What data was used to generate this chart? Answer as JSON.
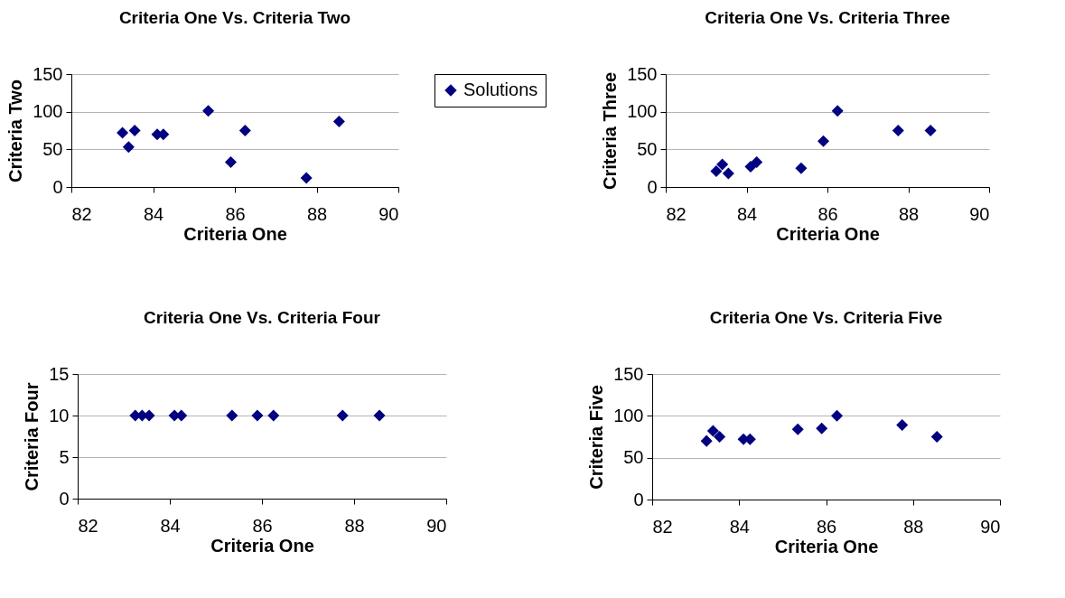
{
  "chart_data": [
    {
      "type": "scatter",
      "title": "Criteria One Vs. Criteria Two",
      "xlabel": "Criteria One",
      "ylabel": "Criteria Two",
      "x": [
        83.25,
        83.4,
        83.55,
        84.1,
        84.25,
        85.35,
        85.9,
        86.25,
        87.75,
        88.55
      ],
      "series": [
        {
          "name": "Solutions",
          "color": "#000080",
          "values": [
            72,
            53,
            75,
            70,
            70,
            101,
            33,
            75,
            12,
            87
          ]
        }
      ],
      "xlim": [
        82,
        90
      ],
      "xticks": [
        82,
        84,
        86,
        88,
        90
      ],
      "ylim": [
        0,
        150
      ],
      "yticks": [
        0,
        50,
        100,
        150
      ],
      "grid": "y",
      "marker": "diamond",
      "legend": "right"
    },
    {
      "type": "scatter",
      "title": "Criteria One Vs. Criteria Three",
      "xlabel": "Criteria One",
      "ylabel": "Criteria Three",
      "x": [
        83.25,
        83.4,
        83.55,
        84.1,
        84.25,
        85.35,
        85.9,
        86.25,
        87.75,
        88.55
      ],
      "series": [
        {
          "color": "#000080",
          "values": [
            21,
            30,
            18,
            27,
            33,
            25,
            61,
            101,
            75,
            75
          ]
        }
      ],
      "xlim": [
        82,
        90
      ],
      "xticks": [
        82,
        84,
        86,
        88,
        90
      ],
      "ylim": [
        0,
        150
      ],
      "yticks": [
        0,
        50,
        100,
        150
      ],
      "grid": "y",
      "marker": "diamond"
    },
    {
      "type": "scatter",
      "title": "Criteria One Vs. Criteria Four",
      "xlabel": "Criteria One",
      "ylabel": "Criteria Four",
      "x": [
        83.25,
        83.4,
        83.55,
        84.1,
        84.25,
        85.35,
        85.9,
        86.25,
        87.75,
        88.55
      ],
      "series": [
        {
          "color": "#000080",
          "values": [
            10,
            10,
            10,
            10,
            10,
            10,
            10,
            10,
            10,
            10
          ]
        }
      ],
      "xlim": [
        82,
        90
      ],
      "xticks": [
        82,
        84,
        86,
        88,
        90
      ],
      "ylim": [
        0,
        15
      ],
      "yticks": [
        0,
        5,
        10,
        15
      ],
      "grid": "y",
      "marker": "diamond"
    },
    {
      "type": "scatter",
      "title": "Criteria One Vs. Criteria Five",
      "xlabel": "Criteria One",
      "ylabel": "Criteria Five",
      "x": [
        83.25,
        83.4,
        83.55,
        84.1,
        84.25,
        85.35,
        85.9,
        86.25,
        87.75,
        88.55
      ],
      "series": [
        {
          "color": "#000080",
          "values": [
            70,
            82,
            75,
            72,
            72,
            84,
            85,
            100,
            89,
            75
          ]
        }
      ],
      "xlim": [
        82,
        90
      ],
      "xticks": [
        82,
        84,
        86,
        88,
        90
      ],
      "ylim": [
        0,
        150
      ],
      "yticks": [
        0,
        50,
        100,
        150
      ],
      "grid": "y",
      "marker": "diamond"
    }
  ]
}
